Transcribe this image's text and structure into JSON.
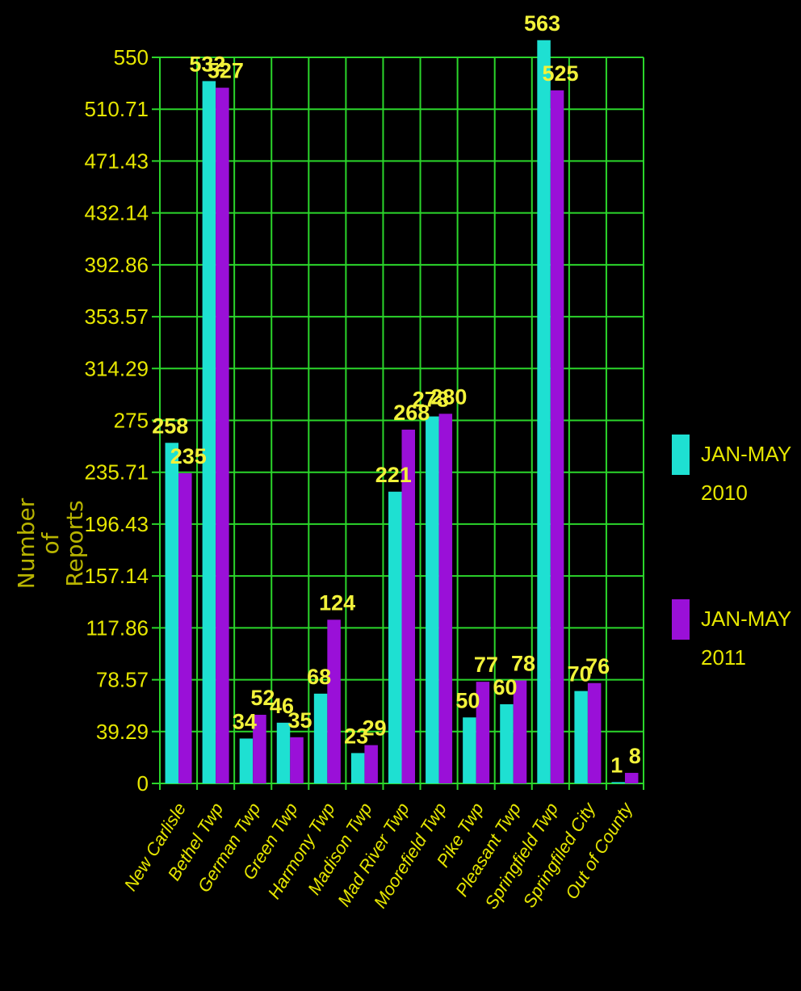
{
  "chart_data": {
    "type": "bar",
    "title": "",
    "xlabel": "",
    "ylabel": [
      "Number",
      "of",
      "Reports"
    ],
    "categories": [
      "New Carlisle",
      "Bethel Twp",
      "German Twp",
      "Green Twp",
      "Harmony Twp",
      "Madison Twp",
      "Mad River Twp",
      "Moorefield Twp",
      "Pike Twp",
      "Pleasant Twp",
      "Springfield Twp",
      "Springfiled City",
      "Out of County"
    ],
    "series": [
      {
        "name": "JAN-MAY 2010",
        "legend_lines": [
          "JAN-MAY",
          "2010"
        ],
        "color": "#1ee0d2",
        "values": [
          258,
          532,
          34,
          46,
          68,
          23,
          221,
          278,
          50,
          60,
          563,
          70,
          1
        ]
      },
      {
        "name": "JAN-MAY 2011",
        "legend_lines": [
          "JAN-MAY",
          "2011"
        ],
        "color": "#9a10d8",
        "values": [
          235,
          527,
          52,
          35,
          124,
          29,
          268,
          280,
          77,
          78,
          525,
          76,
          8
        ]
      }
    ],
    "ylim": [
      0,
      550
    ],
    "yticks": [
      "0",
      "39.29",
      "78.57",
      "117.86",
      "157.14",
      "196.43",
      "235.71",
      "275",
      "314.29",
      "353.57",
      "392.86",
      "432.14",
      "471.43",
      "510.71",
      "550"
    ],
    "grid": true,
    "grid_color": "#2bd62b",
    "legend_position": "right"
  }
}
